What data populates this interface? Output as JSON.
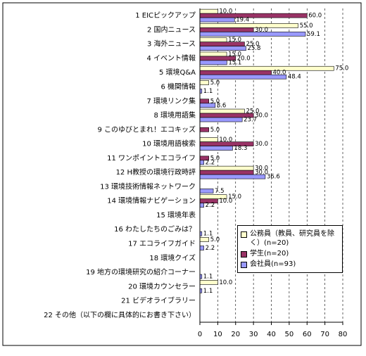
{
  "chart_data": {
    "type": "hbar",
    "categories": [
      "1 EICピックアップ",
      "2 国内ニュース",
      "3 海外ニュース",
      "4 イベント情報",
      "5 環境Q&A",
      "6 機関情報",
      "7 環境リンク集",
      "8 環境用語集",
      "9 このゆびとまれ！エコキッズ",
      "10 環境用語検索",
      "11 ワンポイントエコライフ",
      "12 H教授の環境行政時評",
      "13 環境技術情報ネットワーク",
      "14 環境情報ナビゲーション",
      "15 環境年表",
      "16 わたしたちのごみは？",
      "17 エコライフガイド",
      "18 環境クイズ",
      "19 地方の環境研究の紹介コーナー",
      "20 環境カウンセラー",
      "21 ビデオライブラリー",
      "22 その他（以下の欄に具体的にお書き下さい）"
    ],
    "series": [
      {
        "name": "公務員（教員、研究員を除く）(n=20)",
        "color": "#ffffcc",
        "values": [
          10,
          55,
          15,
          15,
          75,
          5,
          null,
          25,
          null,
          10,
          null,
          30,
          null,
          15,
          null,
          null,
          5,
          null,
          null,
          10,
          null,
          null
        ],
        "value_labels": [
          "10.0",
          "55.0",
          "15.0",
          "15.0",
          "75.0",
          "5.0",
          null,
          "25.0",
          null,
          "10.0",
          null,
          "30.0",
          null,
          "15.0",
          null,
          null,
          "5.0",
          null,
          null,
          "10.0",
          null,
          null
        ]
      },
      {
        "name": "学生(n=20)",
        "color": "#993366",
        "values": [
          60,
          30,
          25,
          20,
          40,
          null,
          5,
          30,
          5,
          30,
          5,
          30,
          null,
          10,
          null,
          null,
          null,
          null,
          null,
          null,
          null,
          null
        ],
        "value_labels": [
          "60.0",
          "30.0",
          "25.0",
          "20.0",
          "40.0",
          null,
          "5.0",
          "30.0",
          "5.0",
          "30.0",
          "5.0",
          "30.0",
          null,
          "10.0",
          null,
          null,
          null,
          null,
          null,
          null,
          null,
          null
        ]
      },
      {
        "name": "会社員(n=93)",
        "color": "#9999ff",
        "values": [
          19.4,
          59.1,
          25.8,
          15.1,
          48.4,
          1.1,
          8.6,
          23.7,
          null,
          18.3,
          2.2,
          36.6,
          7.5,
          2.2,
          null,
          1.1,
          2.2,
          null,
          1.1,
          1.1,
          null,
          null
        ],
        "value_labels": [
          "19.4",
          "59.1",
          "25.8",
          "15.1",
          "48.4",
          "1.1",
          "8.6",
          "23.7",
          null,
          "18.3",
          "2.2",
          "36.6",
          "7.5",
          "2.2",
          null,
          "1.1",
          "2.2",
          null,
          "1.1",
          "1.1",
          null,
          null
        ]
      }
    ],
    "xlim": [
      0,
      80
    ],
    "xticks": [
      0,
      10,
      20,
      30,
      40,
      50,
      60,
      70,
      80
    ],
    "x_unit": "(%)",
    "grid": true
  }
}
